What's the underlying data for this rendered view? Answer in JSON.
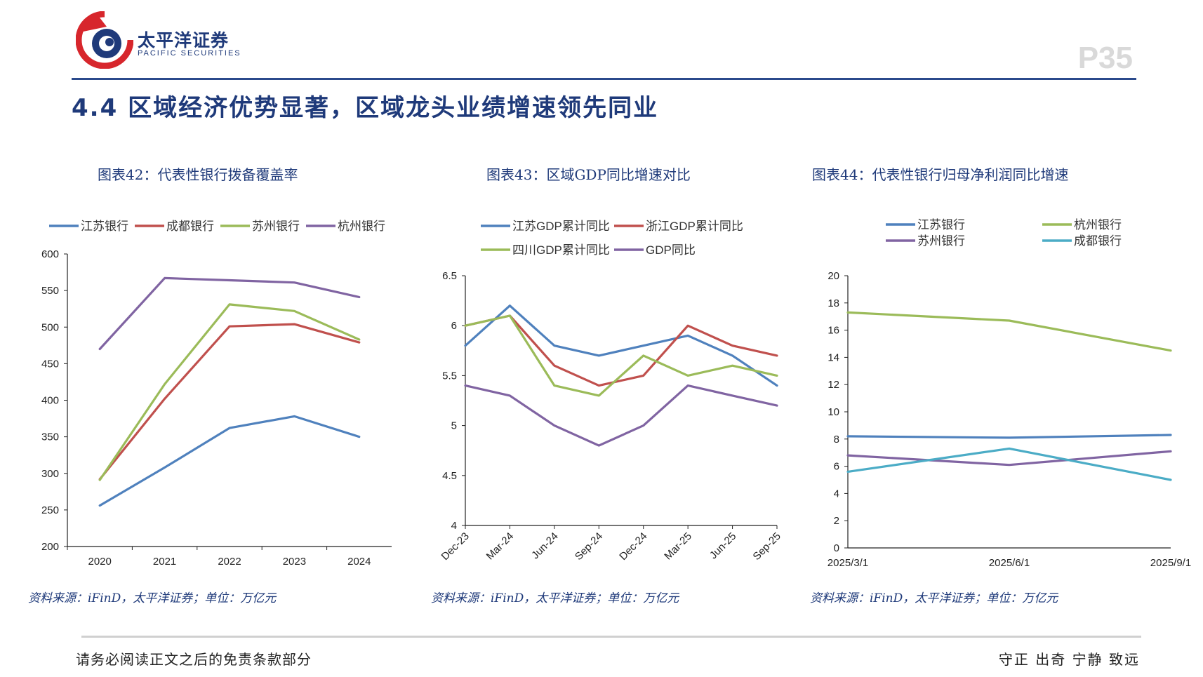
{
  "header": {
    "brand_cn": "太平洋证券",
    "brand_en": "PACIFIC SECURITIES",
    "page_number": "P35",
    "heading": "4.4 区域经济优势显著，区域龙头业绩增速领先同业"
  },
  "footer": {
    "left": "请务必阅读正文之后的免责条款部分",
    "right": "守正 出奇 宁静 致远"
  },
  "chart_data": [
    {
      "type": "line",
      "title": "图表42：代表性银行拨备覆盖率",
      "source": "资料来源：iFinD，太平洋证券；单位：万亿元",
      "categories": [
        "2020",
        "2021",
        "2022",
        "2023",
        "2024"
      ],
      "ylim": [
        200,
        600
      ],
      "yticks": [
        200,
        250,
        300,
        350,
        400,
        450,
        500,
        550,
        600
      ],
      "legend_position": "top",
      "series": [
        {
          "name": "江苏银行",
          "color": "#4f81bd",
          "values": [
            256,
            308,
            362,
            378,
            350
          ]
        },
        {
          "name": "成都银行",
          "color": "#c0504d",
          "values": [
            292,
            402,
            501,
            504,
            479
          ]
        },
        {
          "name": "苏州银行",
          "color": "#9bbb59",
          "values": [
            291,
            422,
            531,
            522,
            483
          ]
        },
        {
          "name": "杭州银行",
          "color": "#8064a2",
          "values": [
            470,
            567,
            564,
            561,
            541
          ]
        }
      ]
    },
    {
      "type": "line",
      "title": "图表43：区域GDP同比增速对比",
      "source": "资料来源：iFinD，太平洋证券；单位：万亿元",
      "categories": [
        "Dec-23",
        "Mar-24",
        "Jun-24",
        "Sep-24",
        "Dec-24",
        "Mar-25",
        "Jun-25",
        "Sep-25"
      ],
      "ylim": [
        4,
        6.5
      ],
      "yticks": [
        "4",
        "4.5",
        "5",
        "5.5",
        "6",
        "6.5"
      ],
      "legend_position": "top",
      "series": [
        {
          "name": "江苏GDP累计同比",
          "color": "#4f81bd",
          "values": [
            5.8,
            6.2,
            5.8,
            5.7,
            5.8,
            5.9,
            5.7,
            5.4
          ]
        },
        {
          "name": "浙江GDP累计同比",
          "color": "#c0504d",
          "values": [
            6.0,
            6.1,
            5.6,
            5.4,
            5.5,
            6.0,
            5.8,
            5.7
          ]
        },
        {
          "name": "四川GDP累计同比",
          "color": "#9bbb59",
          "values": [
            6.0,
            6.1,
            5.4,
            5.3,
            5.7,
            5.5,
            5.6,
            5.5
          ]
        },
        {
          "name": "GDP同比",
          "color": "#8064a2",
          "values": [
            5.4,
            5.3,
            5.0,
            4.8,
            5.0,
            5.4,
            5.3,
            5.2
          ]
        }
      ]
    },
    {
      "type": "line",
      "title": "图表44：代表性银行归母净利润同比增速",
      "source": "资料来源：iFinD，太平洋证券；单位：万亿元",
      "categories": [
        "2025/3/1",
        "2025/6/1",
        "2025/9/1"
      ],
      "ylim": [
        0,
        20
      ],
      "yticks": [
        0,
        2,
        4,
        6,
        8,
        10,
        12,
        14,
        16,
        18,
        20
      ],
      "legend_position": "top",
      "series": [
        {
          "name": "江苏银行",
          "color": "#4f81bd",
          "values": [
            8.2,
            8.1,
            8.3
          ]
        },
        {
          "name": "杭州银行",
          "color": "#9bbb59",
          "values": [
            17.3,
            16.7,
            14.5
          ]
        },
        {
          "name": "苏州银行",
          "color": "#8064a2",
          "values": [
            6.8,
            6.1,
            7.1
          ]
        },
        {
          "name": "成都银行",
          "color": "#4bacc6",
          "values": [
            5.6,
            7.3,
            5.0
          ]
        }
      ]
    }
  ]
}
